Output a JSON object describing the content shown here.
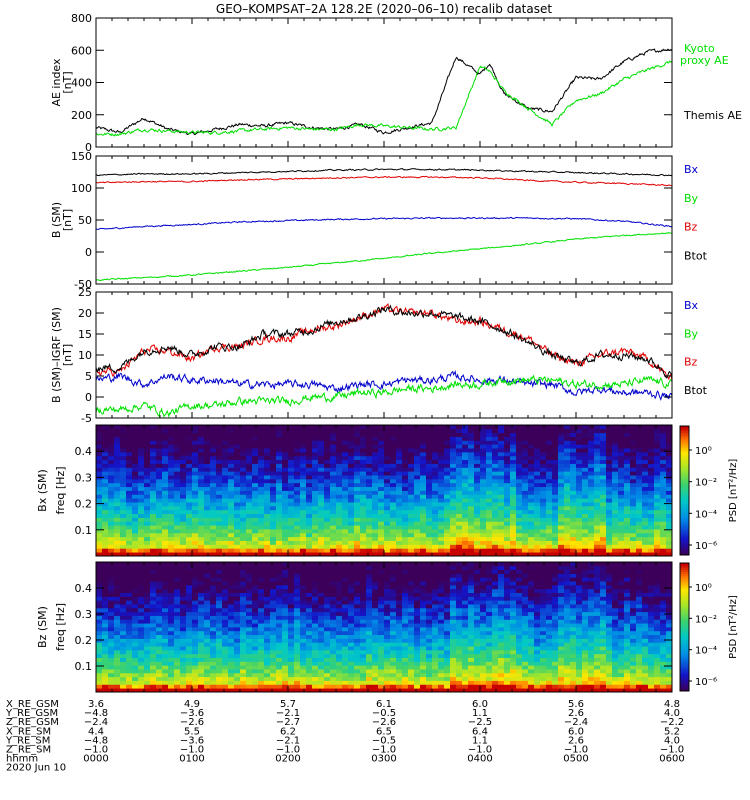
{
  "title": "GEO–KOMPSAT–2A 128.2E (2020–06–10) recalib dataset",
  "colors": {
    "black": "#000000",
    "red": "#e00000",
    "blue": "#0000cc",
    "green": "#00e000",
    "ae_green": "#22dd22"
  },
  "chart_data": [
    {
      "id": "ae",
      "type": "line",
      "ylabel": "AE index",
      "yunit": "[nT]",
      "ylim": [
        0,
        800
      ],
      "yticks": [
        "0",
        "200",
        "400",
        "600",
        "800"
      ],
      "ytick_values": [
        0,
        200,
        400,
        600,
        800
      ],
      "x_hours": [
        0,
        0.25,
        0.5,
        0.75,
        1.0,
        1.25,
        1.5,
        1.75,
        2.0,
        2.25,
        2.5,
        2.75,
        3.0,
        3.25,
        3.5,
        3.75,
        4.0,
        4.1,
        4.25,
        4.5,
        4.75,
        5.0,
        5.25,
        5.5,
        5.75,
        6.0
      ],
      "series": [
        {
          "name": "Themis AE",
          "color": "black",
          "values": [
            120,
            90,
            180,
            110,
            80,
            110,
            140,
            130,
            150,
            120,
            110,
            140,
            90,
            120,
            150,
            560,
            450,
            520,
            330,
            240,
            220,
            430,
            420,
            530,
            590,
            610
          ]
        },
        {
          "name": "Kyoto proxy AE",
          "color": "green",
          "values": [
            80,
            80,
            110,
            100,
            90,
            90,
            100,
            110,
            120,
            110,
            110,
            140,
            130,
            120,
            110,
            120,
            500,
            470,
            350,
            240,
            140,
            290,
            330,
            420,
            480,
            530
          ]
        }
      ],
      "legend": [
        {
          "text": "Kyoto",
          "color": "green"
        },
        {
          "text": "proxy AE",
          "color": "green"
        },
        {
          "text": "Themis AE",
          "color": "black"
        }
      ]
    },
    {
      "id": "b",
      "type": "line",
      "ylabel": "B (SM)",
      "yunit": "[nT]",
      "ylim": [
        -50,
        150
      ],
      "yticks": [
        "-50",
        "0",
        "50",
        "100",
        "150"
      ],
      "ytick_values": [
        -50,
        0,
        50,
        100,
        150
      ],
      "x_hours": [
        0,
        0.5,
        1.0,
        1.5,
        2.0,
        2.5,
        3.0,
        3.5,
        4.0,
        4.5,
        5.0,
        5.5,
        6.0
      ],
      "series": [
        {
          "name": "Bx",
          "color": "blue",
          "values": [
            35,
            40,
            43,
            47,
            49,
            51,
            52,
            53,
            53,
            53,
            52,
            48,
            40
          ]
        },
        {
          "name": "By",
          "color": "green",
          "values": [
            -44,
            -40,
            -36,
            -30,
            -24,
            -17,
            -10,
            -2,
            5,
            12,
            20,
            26,
            30
          ]
        },
        {
          "name": "Bz",
          "color": "red",
          "values": [
            108,
            110,
            110,
            113,
            114,
            116,
            117,
            117,
            116,
            112,
            109,
            107,
            104
          ]
        },
        {
          "name": "Btot",
          "color": "black",
          "values": [
            120,
            122,
            122,
            124,
            126,
            128,
            129,
            129,
            128,
            126,
            124,
            122,
            120
          ]
        }
      ],
      "legend": [
        {
          "text": "Bx",
          "color": "blue"
        },
        {
          "text": "By",
          "color": "green"
        },
        {
          "text": "Bz",
          "color": "red"
        },
        {
          "text": "Btot",
          "color": "black"
        }
      ]
    },
    {
      "id": "dbn",
      "type": "line",
      "ylabel": "B (SM)–IGRF (SM)",
      "yunit": "[nT]",
      "ylim": [
        -5,
        25
      ],
      "yticks": [
        "-5",
        "0",
        "5",
        "10",
        "15",
        "20",
        "25"
      ],
      "ytick_values": [
        -5,
        0,
        5,
        10,
        15,
        20,
        25
      ],
      "x_hours": [
        0,
        0.25,
        0.5,
        0.75,
        1.0,
        1.25,
        1.5,
        1.75,
        2.0,
        2.25,
        2.5,
        2.75,
        3.0,
        3.25,
        3.5,
        3.75,
        4.0,
        4.25,
        4.5,
        4.75,
        5.0,
        5.25,
        5.5,
        5.75,
        6.0
      ],
      "series": [
        {
          "name": "Bx",
          "color": "blue",
          "values": [
            4,
            5,
            3,
            5,
            4,
            4,
            3,
            3,
            3,
            3,
            2,
            3,
            3,
            4,
            4,
            5,
            4,
            4,
            3,
            3,
            1,
            2,
            1,
            1,
            0
          ]
        },
        {
          "name": "By",
          "color": "green",
          "values": [
            -3,
            -3,
            -2,
            -4,
            -2,
            -2,
            -1,
            -1,
            -1,
            0,
            0,
            1,
            1,
            2,
            2,
            3,
            3,
            4,
            4,
            4,
            3,
            3,
            3,
            4,
            3
          ]
        },
        {
          "name": "Bz",
          "color": "red",
          "values": [
            6,
            6,
            11,
            11,
            9,
            12,
            12,
            14,
            14,
            16,
            17,
            19,
            21,
            20,
            20,
            18,
            18,
            16,
            14,
            10,
            8,
            10,
            11,
            9,
            4
          ]
        },
        {
          "name": "Btot",
          "color": "black",
          "values": [
            7,
            7,
            11,
            12,
            10,
            12,
            12,
            15,
            15,
            16,
            18,
            19,
            21,
            20,
            20,
            19,
            18,
            16,
            13,
            10,
            8,
            10,
            10,
            9,
            5
          ]
        }
      ],
      "legend": [
        {
          "text": "Bx",
          "color": "blue"
        },
        {
          "text": "By",
          "color": "green"
        },
        {
          "text": "Bz",
          "color": "red"
        },
        {
          "text": "Btot",
          "color": "black"
        }
      ]
    },
    {
      "id": "spec_bx",
      "type": "heatmap",
      "ylabel": "Bx (SM)",
      "y2label": "freq [Hz]",
      "ylim": [
        0,
        0.5
      ],
      "yticks": [
        "0.1",
        "0.2",
        "0.3",
        "0.4"
      ],
      "ytick_values": [
        0.1,
        0.2,
        0.3,
        0.4
      ],
      "colorbar": {
        "label": "PSD [nT²/Hz]",
        "ticks": [
          "10⁰",
          "10⁻²",
          "10⁻⁴",
          "10⁻⁶"
        ]
      }
    },
    {
      "id": "spec_bz",
      "type": "heatmap",
      "ylabel": "Bz (SM)",
      "y2label": "freq [Hz]",
      "ylim": [
        0,
        0.5
      ],
      "yticks": [
        "0.1",
        "0.2",
        "0.3",
        "0.4"
      ],
      "ytick_values": [
        0.1,
        0.2,
        0.3,
        0.4
      ],
      "colorbar": {
        "label": "PSD [nT²/Hz]",
        "ticks": [
          "10⁰",
          "10⁻²",
          "10⁻⁴",
          "10⁻⁶"
        ]
      }
    }
  ],
  "time_axis": {
    "xlim_hours": [
      0,
      6
    ],
    "tick_hours": [
      0,
      1,
      2,
      3,
      4,
      5,
      6
    ],
    "rows": [
      {
        "label": "X_RE_GSM",
        "values": [
          "3.6",
          "4.9",
          "5.7",
          "6.1",
          "6.0",
          "5.6",
          "4.8"
        ]
      },
      {
        "label": "Y_RE_GSM",
        "values": [
          "−4.8",
          "−3.6",
          "−2.1",
          "−0.5",
          "1.1",
          "2.6",
          "4.0"
        ]
      },
      {
        "label": "Z_RE_GSM",
        "values": [
          "−2.4",
          "−2.6",
          "−2.7",
          "−2.6",
          "−2.5",
          "−2.4",
          "−2.2"
        ]
      },
      {
        "label": "X_RE_SM",
        "values": [
          "4.4",
          "5.5",
          "6.2",
          "6.5",
          "6.4",
          "6.0",
          "5.2"
        ]
      },
      {
        "label": "Y_RE_SM",
        "values": [
          "−4.8",
          "−3.6",
          "−2.1",
          "−0.5",
          "1.1",
          "2.6",
          "4.0"
        ]
      },
      {
        "label": "Z_RE_SM",
        "values": [
          "−1.0",
          "−1.0",
          "−1.0",
          "−1.0",
          "−1.0",
          "−1.0",
          "−1.0"
        ]
      },
      {
        "label": "hhmm",
        "values": [
          "0000",
          "0100",
          "0200",
          "0300",
          "0400",
          "0500",
          "0600"
        ]
      }
    ],
    "date": "2020 Jun 10"
  }
}
